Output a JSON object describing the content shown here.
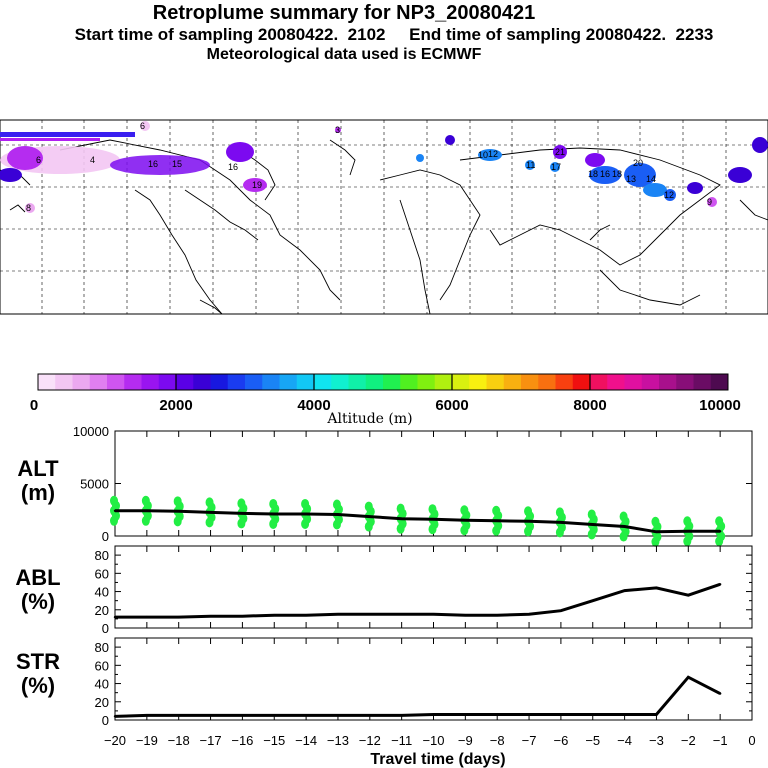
{
  "header": {
    "title": "Retroplume summary for NP3_20080421",
    "sampling": "Start time of sampling 20080422.  2102     End time of sampling 20080422.  2233",
    "met": "Meteorological data used is ECMWF"
  },
  "colorbar": {
    "label": "Altitude (m)",
    "ticks": [
      "0",
      "2000",
      "4000",
      "6000",
      "8000",
      "10000"
    ],
    "colors": [
      "#f9e1f9",
      "#f3c6f3",
      "#eba8f0",
      "#e07ff0",
      "#cf55f0",
      "#b52cf0",
      "#9a14f0",
      "#7c0af0",
      "#5a00e6",
      "#3a00d6",
      "#1818e0",
      "#1a3cf0",
      "#1a5ef5",
      "#1a84f5",
      "#17a6f5",
      "#12c8f5",
      "#10e4f0",
      "#10f0d0",
      "#10f0a8",
      "#10f080",
      "#20f050",
      "#50f020",
      "#80f010",
      "#b0f010",
      "#d8f010",
      "#f8f010",
      "#f8d010",
      "#f8b010",
      "#f89010",
      "#f87010",
      "#f84010",
      "#f01010",
      "#f01060",
      "#f0108c",
      "#e010a0",
      "#c810a0",
      "#a8108c",
      "#880e78",
      "#6a0c64",
      "#4e0a50"
    ]
  },
  "map": {
    "markers": [
      "6",
      "4",
      "16",
      "15",
      "16",
      "6",
      "8",
      "19",
      "10",
      "12",
      "11",
      "17",
      "21",
      "18",
      "16",
      "18",
      "20",
      "13",
      "14",
      "12",
      "9",
      "3"
    ]
  },
  "chart_data": [
    {
      "type": "line",
      "name": "ALT",
      "ylabel": "ALT",
      "yunit": "(m)",
      "ylim": [
        0,
        10000
      ],
      "yticks": [
        "10000",
        "5000",
        "0"
      ],
      "x": [
        -20,
        -19,
        -18,
        -17,
        -16,
        -15,
        -14,
        -13,
        -12,
        -11,
        -10,
        -9,
        -8,
        -7,
        -6,
        -5,
        -4,
        -3,
        -2,
        -1
      ],
      "values": [
        2400,
        2400,
        2350,
        2250,
        2150,
        2100,
        2100,
        2050,
        1850,
        1650,
        1600,
        1500,
        1450,
        1400,
        1300,
        1100,
        900,
        400,
        450,
        450
      ],
      "scatter_color": "#22ee44"
    },
    {
      "type": "line",
      "name": "ABL",
      "ylabel": "ABL",
      "yunit": "(%)",
      "ylim": [
        0,
        90
      ],
      "yticks": [
        "80",
        "60",
        "40",
        "20",
        "0"
      ],
      "x": [
        -20,
        -19,
        -18,
        -17,
        -16,
        -15,
        -14,
        -13,
        -12,
        -11,
        -10,
        -9,
        -8,
        -7,
        -6,
        -5,
        -4,
        -3,
        -2,
        -1
      ],
      "values": [
        12,
        12,
        12,
        13,
        13,
        14,
        14,
        15,
        15,
        15,
        15,
        14,
        14,
        15,
        19,
        30,
        41,
        44,
        36,
        48
      ]
    },
    {
      "type": "line",
      "name": "STR",
      "ylabel": "STR",
      "yunit": "(%)",
      "ylim": [
        0,
        90
      ],
      "yticks": [
        "80",
        "60",
        "40",
        "20",
        "0"
      ],
      "x": [
        -20,
        -19,
        -18,
        -17,
        -16,
        -15,
        -14,
        -13,
        -12,
        -11,
        -10,
        -9,
        -8,
        -7,
        -6,
        -5,
        -4,
        -3,
        -2,
        -1
      ],
      "values": [
        4,
        5,
        5,
        5,
        5,
        5,
        5,
        5,
        5,
        5,
        6,
        6,
        6,
        6,
        6,
        6,
        6,
        6,
        47,
        29
      ]
    }
  ],
  "xaxis": {
    "label": "Travel time (days)",
    "ticks": [
      "−20",
      "−19",
      "−18",
      "−17",
      "−16",
      "−15",
      "−14",
      "−13",
      "−12",
      "−11",
      "−10",
      "−9",
      "−8",
      "−7",
      "−6",
      "−5",
      "−4",
      "−3",
      "−2",
      "−1",
      "0"
    ]
  }
}
